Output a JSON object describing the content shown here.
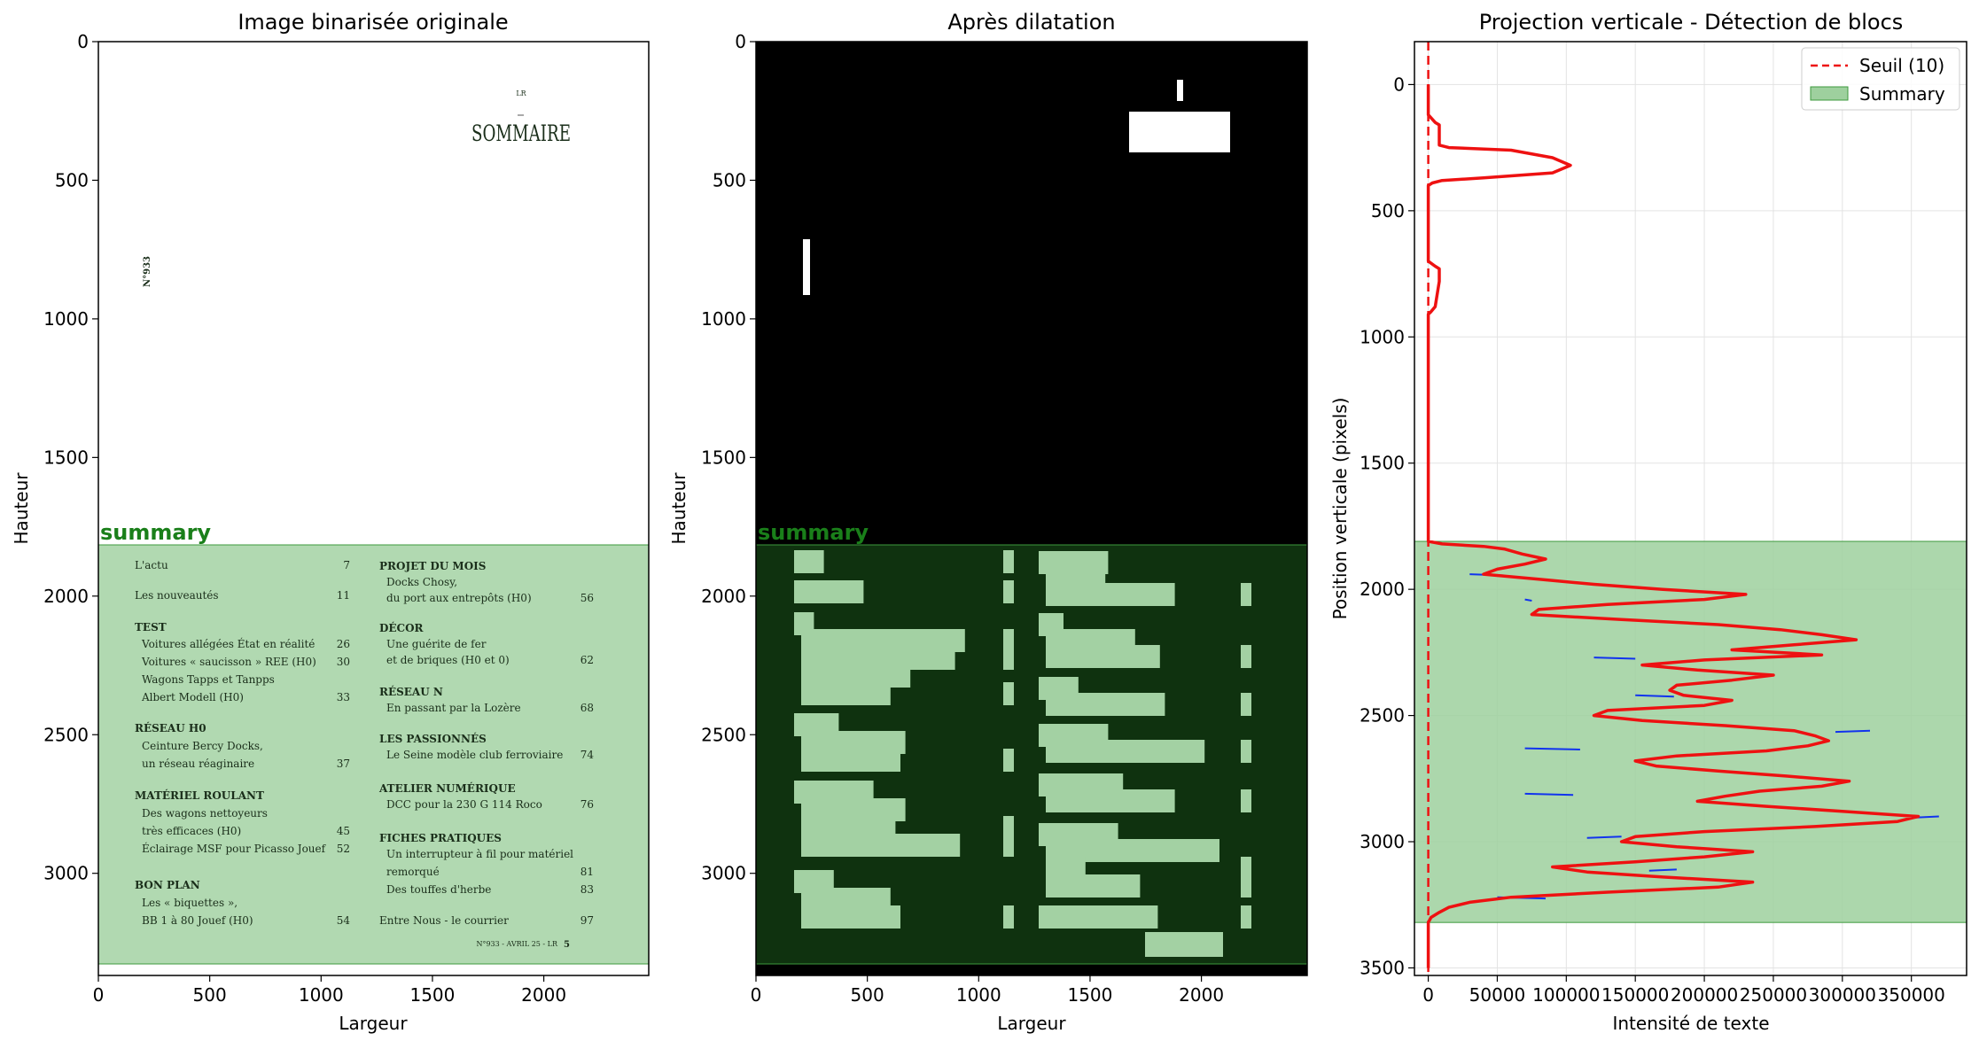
{
  "panels": {
    "original": {
      "title": "Image binarisée originale",
      "xlabel": "Largeur",
      "ylabel": "Hauteur",
      "xticks": [
        "0",
        "500",
        "1000",
        "1500",
        "2000"
      ],
      "yticks": [
        "0",
        "500",
        "1000",
        "1500",
        "2000",
        "2500",
        "3000"
      ],
      "region_label": "summary"
    },
    "dilated": {
      "title": "Après dilatation",
      "xlabel": "Largeur",
      "ylabel": "Hauteur",
      "xticks": [
        "0",
        "500",
        "1000",
        "1500",
        "2000"
      ],
      "yticks": [
        "0",
        "500",
        "1000",
        "1500",
        "2000",
        "2500",
        "3000"
      ],
      "region_label": "summary"
    }
  },
  "document": {
    "header_small": "LR",
    "sommaire": "SOMMAIRE",
    "issue_vertical": "N°933",
    "left_column": [
      {
        "text": "L'actu",
        "page": "7",
        "bold": false,
        "indent": false
      },
      {
        "text": "Les nouveautés",
        "page": "11",
        "bold": false,
        "indent": false
      },
      {
        "text": "TEST",
        "page": "",
        "bold": true,
        "indent": false
      },
      {
        "text": "Voitures allégées État en réalité",
        "page": "26",
        "bold": false,
        "indent": true
      },
      {
        "text": "Voitures « saucisson » REE (H0)",
        "page": "30",
        "bold": false,
        "indent": true
      },
      {
        "text": "Wagons Tapps et Tanpps",
        "page": "",
        "bold": false,
        "indent": true
      },
      {
        "text": "Albert Modell (H0)",
        "page": "33",
        "bold": false,
        "indent": true
      },
      {
        "text": "RÉSEAU H0",
        "page": "",
        "bold": true,
        "indent": false
      },
      {
        "text": "Ceinture Bercy Docks,",
        "page": "",
        "bold": false,
        "indent": true
      },
      {
        "text": "un réseau réaginaire",
        "page": "37",
        "bold": false,
        "indent": true
      },
      {
        "text": "MATÉRIEL ROULANT",
        "page": "",
        "bold": true,
        "indent": false
      },
      {
        "text": "Des wagons nettoyeurs",
        "page": "",
        "bold": false,
        "indent": true
      },
      {
        "text": "très efficaces (H0)",
        "page": "45",
        "bold": false,
        "indent": true
      },
      {
        "text": "Éclairage MSF pour Picasso Jouef",
        "page": "52",
        "bold": false,
        "indent": true
      },
      {
        "text": "BON PLAN",
        "page": "",
        "bold": true,
        "indent": false
      },
      {
        "text": "Les « biquettes »,",
        "page": "",
        "bold": false,
        "indent": true
      },
      {
        "text": "BB 1 à 80 Jouef (H0)",
        "page": "54",
        "bold": false,
        "indent": true
      }
    ],
    "right_column": [
      {
        "text": "PROJET DU MOIS",
        "page": "",
        "bold": true,
        "indent": false
      },
      {
        "text": "Docks Chosy,",
        "page": "",
        "bold": false,
        "indent": true
      },
      {
        "text": "du port aux entrepôts (H0)",
        "page": "56",
        "bold": false,
        "indent": true
      },
      {
        "text": "DÉCOR",
        "page": "",
        "bold": true,
        "indent": false
      },
      {
        "text": "Une guérite de fer",
        "page": "",
        "bold": false,
        "indent": true
      },
      {
        "text": "et de briques (H0 et 0)",
        "page": "62",
        "bold": false,
        "indent": true
      },
      {
        "text": "RÉSEAU N",
        "page": "",
        "bold": true,
        "indent": false
      },
      {
        "text": "En passant par la Lozère",
        "page": "68",
        "bold": false,
        "indent": true
      },
      {
        "text": "LES PASSIONNÉS",
        "page": "",
        "bold": true,
        "indent": false
      },
      {
        "text": "Le Seine modèle club ferroviaire",
        "page": "74",
        "bold": false,
        "indent": true
      },
      {
        "text": "ATELIER NUMÉRIQUE",
        "page": "",
        "bold": true,
        "indent": false
      },
      {
        "text": "DCC pour la 230 G 114 Roco",
        "page": "76",
        "bold": false,
        "indent": true
      },
      {
        "text": "FICHES PRATIQUES",
        "page": "",
        "bold": true,
        "indent": false
      },
      {
        "text": "Un interrupteur à fil pour matériel",
        "page": "",
        "bold": false,
        "indent": true
      },
      {
        "text": "remorqué",
        "page": "81",
        "bold": false,
        "indent": true
      },
      {
        "text": "Des touffes d'herbe",
        "page": "83",
        "bold": false,
        "indent": true
      },
      {
        "text": "Entre Nous - le courrier",
        "page": "97",
        "bold": false,
        "indent": false
      }
    ],
    "footer": "N°933 - AVRIL 25 - LR",
    "footer_page": "5"
  },
  "colors": {
    "region_fill": "#9ed09e",
    "region_edge": "#3d9a3d",
    "region_label": "#1a7f1a",
    "profile": "#ee1111",
    "raw_profile": "#1133ee",
    "threshold": "#ee1111"
  },
  "chart_data": {
    "type": "line",
    "orientation": "horizontal",
    "title": "Projection verticale - Détection de blocs",
    "xlabel": "Intensité de texte",
    "ylabel": "Position verticale (pixels)",
    "xlim": [
      -10000,
      390000
    ],
    "ylim": [
      3530,
      -170
    ],
    "y_inverted": true,
    "xticks": [
      "0",
      "50000",
      "100000",
      "150000",
      "200000",
      "250000",
      "300000",
      "350000"
    ],
    "yticks": [
      "0",
      "500",
      "1000",
      "1500",
      "2000",
      "2500",
      "3000",
      "3500"
    ],
    "grid": true,
    "legend_position": "top-right",
    "threshold": {
      "name": "Seuil (10)",
      "value": 10
    },
    "block": {
      "name": "Summary",
      "y_start": 1810,
      "y_end": 3320
    },
    "series": [
      {
        "role": "smoothed",
        "y": [
          0,
          120,
          150,
          160,
          240,
          250,
          260,
          290,
          320,
          350,
          370,
          380,
          390,
          400,
          420,
          700,
          720,
          730,
          780,
          880,
          900,
          910,
          1000,
          1500,
          1810,
          1820,
          1830,
          1840,
          1860,
          1880,
          1900,
          1920,
          1940,
          1960,
          1980,
          2000,
          2020,
          2040,
          2060,
          2080,
          2100,
          2120,
          2140,
          2160,
          2180,
          2200,
          2220,
          2240,
          2260,
          2280,
          2300,
          2320,
          2340,
          2360,
          2380,
          2400,
          2420,
          2440,
          2460,
          2480,
          2500,
          2520,
          2540,
          2560,
          2580,
          2600,
          2620,
          2640,
          2660,
          2680,
          2700,
          2720,
          2740,
          2760,
          2780,
          2800,
          2820,
          2840,
          2860,
          2880,
          2900,
          2920,
          2940,
          2960,
          2980,
          3000,
          3020,
          3040,
          3060,
          3080,
          3100,
          3120,
          3140,
          3160,
          3180,
          3200,
          3220,
          3240,
          3260,
          3280,
          3300,
          3320,
          3500
        ],
        "x": [
          0,
          0,
          5000,
          8000,
          8000,
          15000,
          60000,
          90000,
          103000,
          90000,
          40000,
          10000,
          3000,
          0,
          0,
          0,
          5000,
          8000,
          8000,
          5000,
          2000,
          0,
          0,
          0,
          0,
          10000,
          40000,
          55000,
          68000,
          85000,
          70000,
          50000,
          40000,
          80000,
          120000,
          170000,
          230000,
          200000,
          130000,
          80000,
          75000,
          140000,
          210000,
          255000,
          285000,
          310000,
          265000,
          220000,
          285000,
          200000,
          155000,
          195000,
          250000,
          220000,
          180000,
          175000,
          185000,
          220000,
          200000,
          130000,
          120000,
          155000,
          215000,
          265000,
          280000,
          290000,
          275000,
          245000,
          180000,
          150000,
          165000,
          210000,
          260000,
          305000,
          285000,
          240000,
          215000,
          195000,
          245000,
          300000,
          355000,
          340000,
          280000,
          200000,
          150000,
          140000,
          180000,
          235000,
          200000,
          150000,
          90000,
          115000,
          170000,
          235000,
          210000,
          130000,
          60000,
          30000,
          15000,
          8000,
          2000,
          0,
          0
        ]
      },
      {
        "role": "raw",
        "y": [
          1940,
          1945,
          2040,
          2045,
          2270,
          2275,
          2420,
          2425,
          2560,
          2565,
          2630,
          2635,
          2810,
          2815,
          2900,
          2905,
          2980,
          2985,
          3110,
          3115,
          3220,
          3225
        ],
        "x": [
          30000,
          55000,
          70000,
          75000,
          120000,
          150000,
          150000,
          178000,
          320000,
          295000,
          70000,
          110000,
          70000,
          105000,
          370000,
          350000,
          140000,
          115000,
          180000,
          160000,
          50000,
          85000
        ]
      }
    ]
  }
}
